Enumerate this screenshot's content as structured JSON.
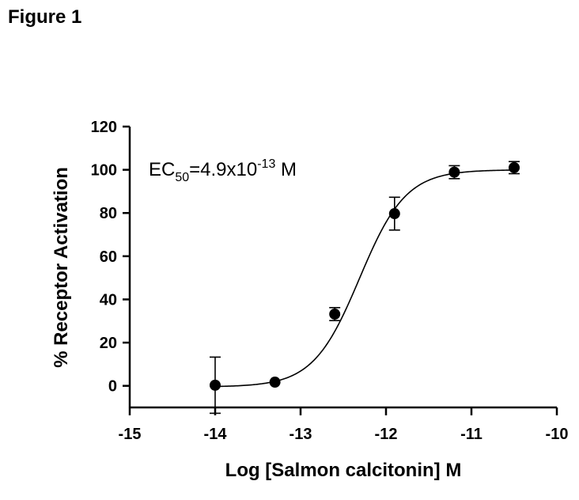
{
  "figure_label": "Figure 1",
  "chart_data": {
    "type": "scatter",
    "xlabel": "Log [Salmon calcitonin] M",
    "ylabel": "% Receptor Activation",
    "xlim": [
      -15,
      -10
    ],
    "ylim": [
      -10,
      120
    ],
    "x_ticks": [
      -15,
      -14,
      -13,
      -12,
      -11,
      -10
    ],
    "x_tick_labels": [
      "-15",
      "-14",
      "-13",
      "-12",
      "-11",
      "-10"
    ],
    "y_ticks": [
      0,
      20,
      40,
      60,
      80,
      100,
      120
    ],
    "y_tick_labels": [
      "0",
      "20",
      "40",
      "60",
      "80",
      "100",
      "120"
    ],
    "points": [
      {
        "x": -14.0,
        "y": 0.3,
        "err": 13.0
      },
      {
        "x": -13.3,
        "y": 1.7,
        "err": 0
      },
      {
        "x": -12.6,
        "y": 33.2,
        "err": 3.0
      },
      {
        "x": -11.9,
        "y": 79.7,
        "err": 7.6
      },
      {
        "x": -11.2,
        "y": 98.9,
        "err": 3.0
      },
      {
        "x": -10.5,
        "y": 101.0,
        "err": 2.8
      }
    ],
    "fit": {
      "bottom": -0.5,
      "top": 100,
      "log_ec50": -12.31,
      "hill": 1.6
    },
    "annotation": {
      "prefix": "EC",
      "subscript": "50",
      "middle": "=4.9x10",
      "superscript": "-13",
      "suffix": " M"
    },
    "grid": false,
    "legend": "none"
  }
}
